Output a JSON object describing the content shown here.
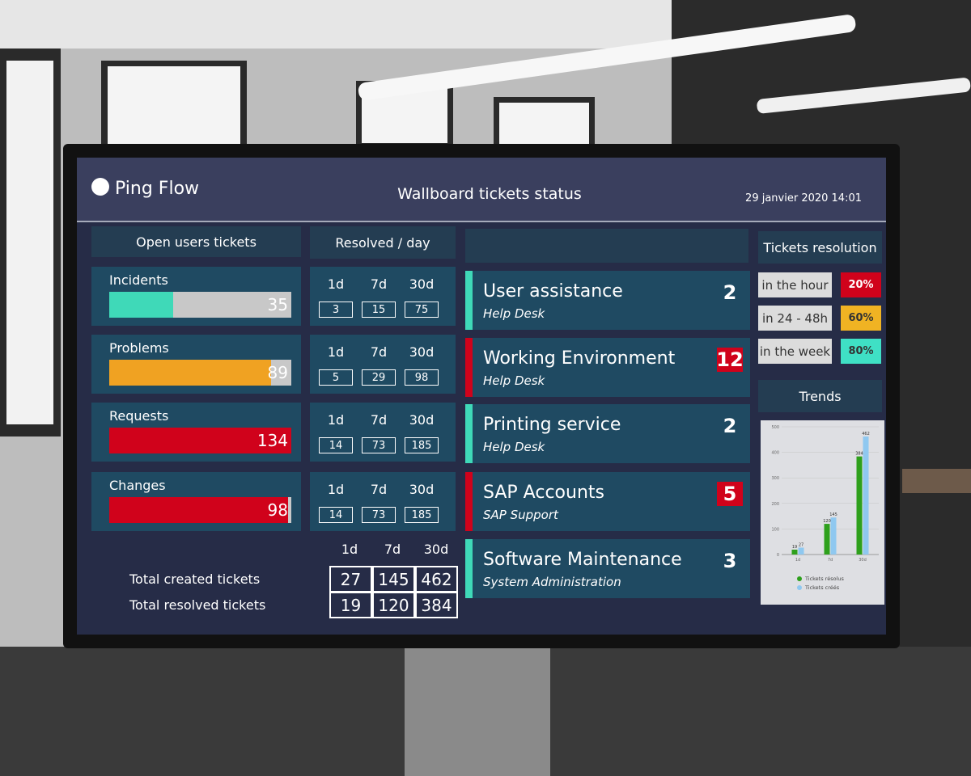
{
  "header": {
    "logo": "Ping Flow",
    "title": "Wallboard tickets status",
    "datetime": "29 janvier 2020 14:01"
  },
  "open_tickets": {
    "title": "Open users tickets",
    "rows": [
      {
        "label": "Incidents",
        "value": 35,
        "color": "#3fd9b8"
      },
      {
        "label": "Problems",
        "value": 89,
        "color": "#f0a222"
      },
      {
        "label": "Requests",
        "value": 134,
        "color": "#d0021b"
      },
      {
        "label": "Changes",
        "value": 98,
        "color": "#d0021b"
      }
    ]
  },
  "resolved_per_day": {
    "title": "Resolved / day",
    "periods": [
      "1d",
      "7d",
      "30d"
    ],
    "rows": [
      [
        3,
        15,
        75
      ],
      [
        5,
        29,
        98
      ],
      [
        14,
        73,
        185
      ],
      [
        14,
        73,
        185
      ]
    ]
  },
  "totals": {
    "periods": [
      "1d",
      "7d",
      "30d"
    ],
    "rows": [
      {
        "label": "Total created tickets",
        "values": [
          27,
          145,
          462
        ]
      },
      {
        "label": "Total resolved tickets",
        "values": [
          19,
          120,
          384
        ]
      }
    ]
  },
  "services": [
    {
      "name": "User assistance",
      "group": "Help Desk",
      "count": 2,
      "alert": false
    },
    {
      "name": "Working Environment",
      "group": "Help Desk",
      "count": 12,
      "alert": true
    },
    {
      "name": "Printing service",
      "group": "Help Desk",
      "count": 2,
      "alert": false
    },
    {
      "name": "SAP Accounts",
      "group": "SAP Support",
      "count": 5,
      "alert": true
    },
    {
      "name": "Software Maintenance",
      "group": "System Administration",
      "count": 3,
      "alert": false
    }
  ],
  "resolution": {
    "title": "Tickets resolution",
    "rows": [
      {
        "label": "in the hour",
        "value": 20,
        "value_label": "20%",
        "color": "#d0021b"
      },
      {
        "label": "in 24 - 48h",
        "value": 60,
        "value_label": "60%",
        "color": "#f0b323"
      },
      {
        "label": "in the week",
        "value": 80,
        "value_label": "80%",
        "color": "#3fe0c5"
      }
    ]
  },
  "trends": {
    "title": "Trends"
  },
  "chart_data": {
    "type": "bar",
    "categories": [
      "1d",
      "7d",
      "30d"
    ],
    "series": [
      {
        "name": "Tickets résolus",
        "color": "#2ea01c",
        "values": [
          19,
          120,
          384
        ]
      },
      {
        "name": "Tickets créés",
        "color": "#8fc8f0",
        "values": [
          27,
          145,
          462
        ]
      }
    ],
    "ylim": [
      0,
      500
    ],
    "yticks": [
      0,
      100,
      200,
      300,
      400,
      500
    ],
    "grid": true
  }
}
